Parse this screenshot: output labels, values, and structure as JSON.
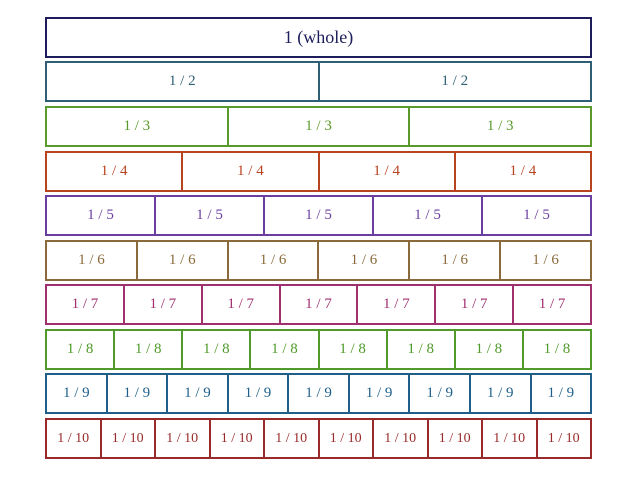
{
  "diagram": {
    "rows": [
      {
        "label": "1  (whole)",
        "parts": 1,
        "color": "#1d1d5c"
      },
      {
        "label": "1 / 2",
        "parts": 2,
        "color": "#2f5f74"
      },
      {
        "label": "1 / 3",
        "parts": 3,
        "color": "#5a9a2a"
      },
      {
        "label": "1 / 4",
        "parts": 4,
        "color": "#b8431f"
      },
      {
        "label": "1 / 5",
        "parts": 5,
        "color": "#6b3fa0"
      },
      {
        "label": "1 / 6",
        "parts": 6,
        "color": "#8a6a3a"
      },
      {
        "label": "1 / 7",
        "parts": 7,
        "color": "#a02f6e"
      },
      {
        "label": "1 / 8",
        "parts": 8,
        "color": "#4f9a2a"
      },
      {
        "label": "1 / 9",
        "parts": 9,
        "color": "#1f5f8a"
      },
      {
        "label": "1 / 10",
        "parts": 10,
        "color": "#9a2a2a"
      }
    ]
  }
}
